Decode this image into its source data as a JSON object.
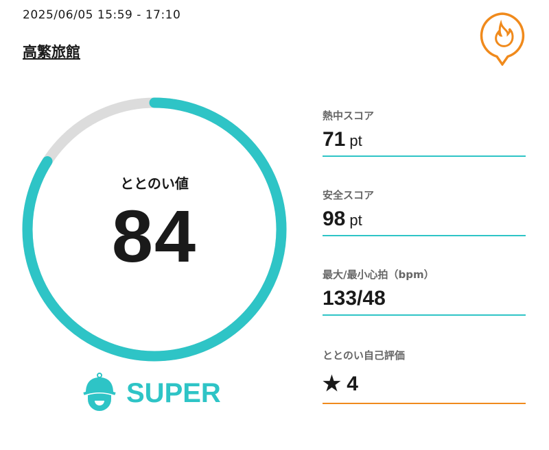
{
  "header": {
    "datetime": "2025/06/05 15:59 - 17:10",
    "place": "高繁旅館",
    "icon": "flame-pin-icon",
    "accent": "#f08a1c"
  },
  "ring": {
    "label": "ととのい値",
    "value": "84",
    "progress_percent": 84,
    "color": "#2ec4c6",
    "track": "#dcdcdc"
  },
  "rank": {
    "label": "SUPER",
    "icon": "sauna-hat-face-icon"
  },
  "stats": [
    {
      "label": "熱中スコア",
      "value": "71",
      "unit": "pt"
    },
    {
      "label": "安全スコア",
      "value": "98",
      "unit": "pt"
    },
    {
      "label": "最大/最小心拍（bpm）",
      "value": "133/48",
      "unit": ""
    },
    {
      "label": "ととのい自己評価",
      "value": "★ 4",
      "unit": ""
    }
  ]
}
